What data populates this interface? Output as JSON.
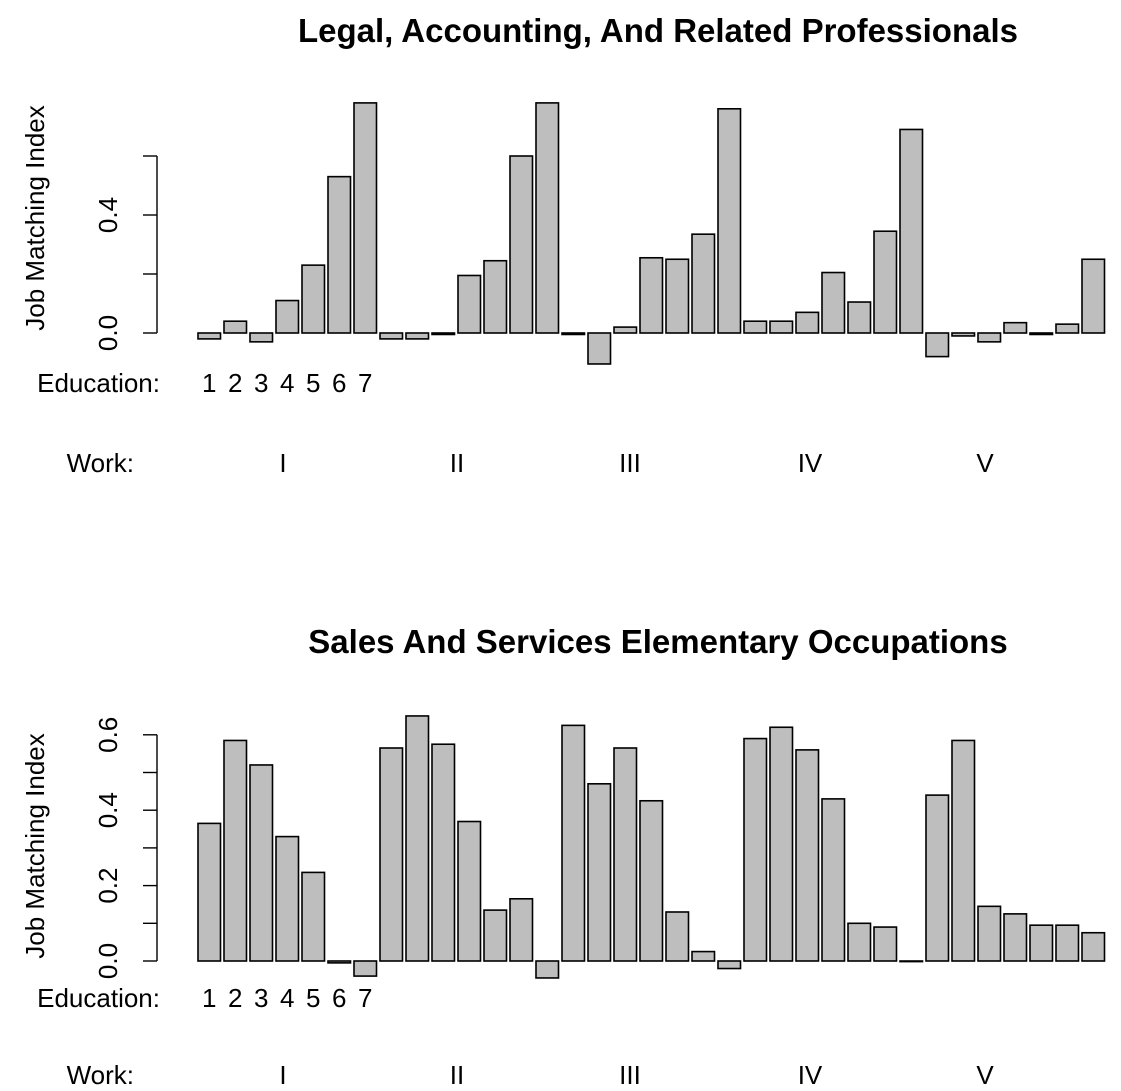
{
  "chart_data": [
    {
      "type": "bar",
      "title": "Legal, Accounting, And Related Professionals",
      "ylabel": "Job Matching Index",
      "ylim": [
        -0.12,
        0.8
      ],
      "yticks": [
        "0.0",
        "0.4"
      ],
      "education_label": "Education:",
      "education_levels": [
        "1",
        "2",
        "3",
        "4",
        "5",
        "6",
        "7"
      ],
      "work_label": "Work:",
      "work_groups": [
        "I",
        "II",
        "III",
        "IV",
        "V"
      ],
      "values": [
        -0.02,
        0.04,
        -0.03,
        0.11,
        0.23,
        0.53,
        0.78,
        -0.02,
        -0.02,
        -0.005,
        0.195,
        0.245,
        0.6,
        0.78,
        -0.005,
        -0.105,
        0.02,
        0.255,
        0.25,
        0.335,
        0.76,
        0.04,
        0.04,
        0.07,
        0.205,
        0.105,
        0.345,
        0.69,
        -0.08,
        -0.01,
        -0.03,
        0.035,
        -0.005,
        0.03,
        0.25
      ]
    },
    {
      "type": "bar",
      "title": "Sales And Services Elementary Occupations",
      "ylabel": "Job Matching Index",
      "ylim": [
        -0.08,
        0.68
      ],
      "yticks": [
        "0.0",
        "0.2",
        "0.4",
        "0.6"
      ],
      "education_label": "Education:",
      "education_levels": [
        "1",
        "2",
        "3",
        "4",
        "5",
        "6",
        "7"
      ],
      "work_label": "Work:",
      "work_groups": [
        "I",
        "II",
        "III",
        "IV",
        "V"
      ],
      "values": [
        0.365,
        0.585,
        0.52,
        0.33,
        0.235,
        -0.005,
        -0.04,
        0.565,
        0.65,
        0.575,
        0.37,
        0.135,
        0.165,
        -0.045,
        0.625,
        0.47,
        0.565,
        0.425,
        0.13,
        0.025,
        -0.02,
        0.59,
        0.62,
        0.56,
        0.43,
        0.1,
        0.09,
        0.0,
        0.44,
        0.585,
        0.145,
        0.125,
        0.095,
        0.095,
        0.075
      ]
    }
  ]
}
